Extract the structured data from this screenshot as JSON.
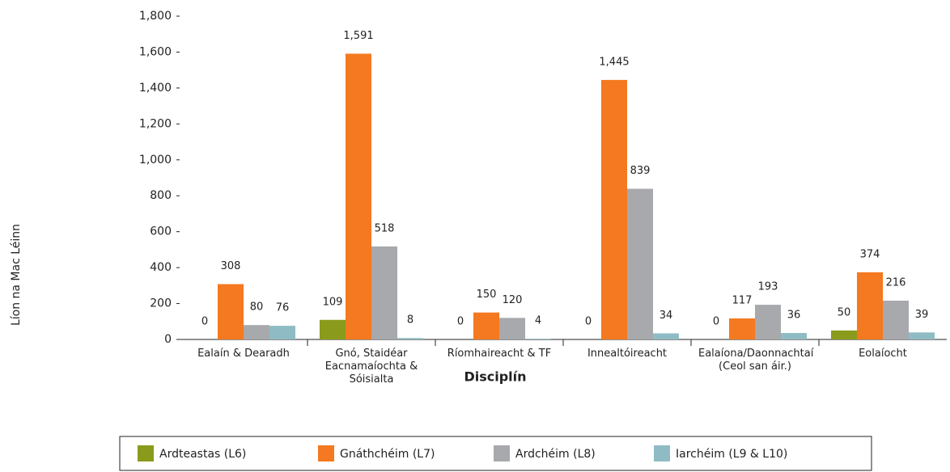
{
  "chart_data": {
    "type": "bar",
    "y_label": "Líon na Mac Léinn",
    "x_label": "Disciplín",
    "categories": [
      "Ealaín  & Dearadh",
      "Gnó, Staidéar Eacnamaíochta & Sóisialta",
      "Ríomhaireacht & TF",
      "Innealtóireacht",
      "Ealaíona/Daonnachtaí (Ceol san áir.)",
      "Eolaíocht"
    ],
    "series": [
      {
        "name": "Ardteastas (L6)",
        "color": "#8a9a1b",
        "values": [
          0,
          109,
          0,
          0,
          0,
          50
        ]
      },
      {
        "name": "Gnáthchéim (L7)",
        "color": "#f47920",
        "values": [
          308,
          1591,
          150,
          1445,
          117,
          374
        ],
        "value_labels": [
          "308",
          "1,591",
          "150",
          "1,445",
          "117",
          "374"
        ]
      },
      {
        "name": "Ardchéim (L8)",
        "color": "#a7a9ac",
        "values": [
          80,
          518,
          120,
          839,
          193,
          216
        ]
      },
      {
        "name": "Iarchéim (L9 & L10)",
        "color": "#8fbcc4",
        "values": [
          76,
          8,
          4,
          34,
          36,
          39
        ]
      }
    ],
    "ylim": [
      0,
      1800
    ],
    "yticks": [
      0,
      200,
      400,
      600,
      800,
      {
        "value": 1000,
        "label": "1,000"
      },
      {
        "value": 1200,
        "label": "1,200"
      },
      {
        "value": 1400,
        "label": "1,400"
      },
      {
        "value": 1600,
        "label": "1,600"
      },
      {
        "value": 1800,
        "label": "1,800"
      }
    ],
    "grid": false,
    "legend": "bottom"
  }
}
